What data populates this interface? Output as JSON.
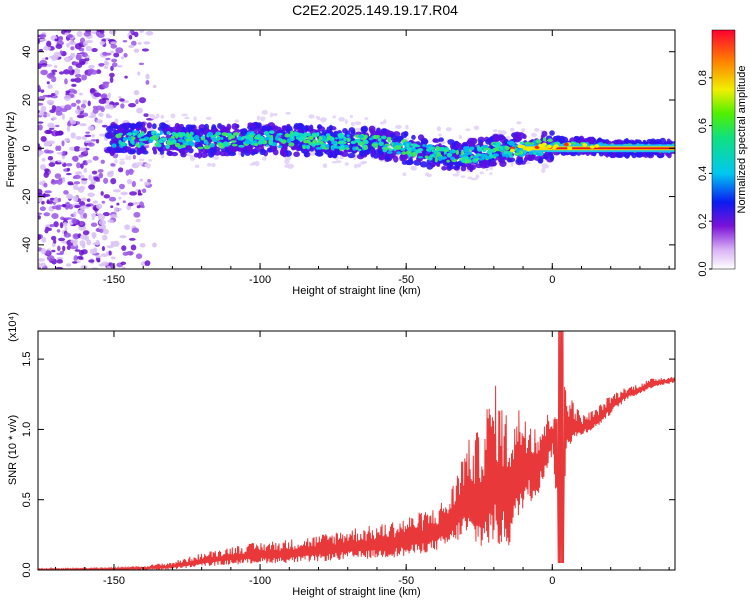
{
  "title": "C2E2.2025.149.19.17.R04",
  "chart_data": [
    {
      "type": "heatmap",
      "xlabel": "Height of straight line (km)",
      "ylabel": "Frequency (Hz)",
      "xlim": [
        -176,
        42
      ],
      "ylim": [
        -50,
        49
      ],
      "xticks": [
        -150,
        -100,
        -50,
        0
      ],
      "yticks": [
        -40,
        -20,
        0,
        20,
        40
      ],
      "colorbar": {
        "label": "Normalized spectral amplitude",
        "ticks": [
          0.0,
          0.2,
          0.4,
          0.6,
          0.8
        ],
        "range": [
          0,
          1
        ]
      },
      "ridge": {
        "x": [
          -150,
          -140,
          -120,
          -100,
          -80,
          -60,
          -50,
          -40,
          -30,
          -20,
          -10,
          0,
          10,
          20,
          42
        ],
        "y": [
          4,
          4,
          3,
          4,
          3,
          2,
          0,
          -2,
          -3,
          -1,
          0,
          1,
          1,
          0,
          0
        ]
      },
      "grid": false,
      "colors": {
        "scheme": "white-purple-blue-cyan-green-yellow-red"
      }
    },
    {
      "type": "line",
      "xlabel": "Height of straight line (km)",
      "ylabel": "SNR (10 * v/v)",
      "y_multiplier": "(x10⁴)",
      "xlim": [
        -176,
        42
      ],
      "ylim": [
        0,
        1.7
      ],
      "xticks": [
        -150,
        -100,
        -50,
        0
      ],
      "yticks": [
        0.0,
        0.5,
        1.0,
        1.5
      ],
      "series": [
        {
          "envelope_x": [
            -176,
            -150,
            -140,
            -130,
            -120,
            -110,
            -100,
            -90,
            -80,
            -70,
            -60,
            -50,
            -40,
            -35,
            -30,
            -25,
            -20,
            -15,
            -10,
            -5,
            0,
            3,
            5,
            10,
            15,
            20,
            25,
            30,
            35,
            42
          ],
          "envelope_y": [
            0.01,
            0.015,
            0.03,
            0.06,
            0.12,
            0.17,
            0.2,
            0.22,
            0.25,
            0.3,
            0.32,
            0.38,
            0.45,
            0.55,
            0.9,
            1.0,
            1.35,
            1.1,
            1.2,
            1.05,
            1.15,
            1.7,
            1.3,
            1.1,
            1.15,
            1.25,
            1.3,
            1.33,
            1.37,
            1.38
          ],
          "floor_y": [
            0.0,
            0.0,
            0.0,
            0.0,
            0.02,
            0.03,
            0.04,
            0.04,
            0.05,
            0.06,
            0.07,
            0.08,
            0.12,
            0.15,
            0.2,
            0.1,
            0.1,
            0.1,
            0.4,
            0.5,
            0.8,
            0.05,
            0.85,
            0.95,
            1.0,
            1.1,
            1.2,
            1.25,
            1.3,
            1.33
          ],
          "color": "#e8383a"
        }
      ],
      "grid": false
    }
  ]
}
